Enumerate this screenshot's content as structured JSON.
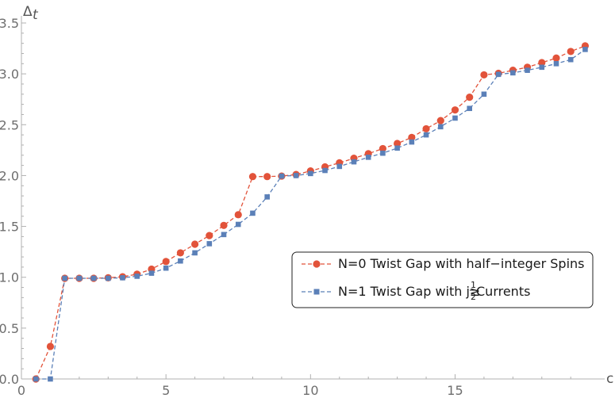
{
  "chart_data": {
    "type": "line",
    "title": "",
    "xlabel": "c",
    "ylabel_main": "Δ",
    "ylabel_sub": "t",
    "xlim": [
      0,
      19.9
    ],
    "ylim": [
      0,
      3.5
    ],
    "x_ticks": [
      0,
      5,
      10,
      15
    ],
    "y_ticks": [
      0.0,
      0.5,
      1.0,
      1.5,
      2.0,
      2.5,
      3.0,
      3.5
    ],
    "y_tick_labels": [
      "0.0",
      "0.5",
      "1.0",
      "1.5",
      "2.0",
      "2.5",
      "3.0",
      "3.5"
    ],
    "x_tick_labels": [
      "0",
      "5",
      "10",
      "15"
    ],
    "grid": false,
    "legend_position": "lower-right",
    "series": [
      {
        "name": "N=0 Twist Gap with half−integer Spins",
        "color": "#e2533a",
        "marker": "circle",
        "x": [
          0.5,
          1,
          1.5,
          2,
          2.5,
          3,
          3.5,
          4,
          4.5,
          5,
          5.5,
          6,
          6.5,
          7,
          7.5,
          8,
          8.5,
          9,
          9.5,
          10,
          10.5,
          11,
          11.5,
          12,
          12.5,
          13,
          13.5,
          14,
          14.5,
          15,
          15.5,
          16,
          16.5,
          17,
          17.5,
          18,
          18.5,
          19,
          19.5
        ],
        "y": [
          0,
          0.32,
          0.99,
          0.99,
          0.99,
          0.995,
          1.005,
          1.03,
          1.08,
          1.155,
          1.24,
          1.325,
          1.41,
          1.51,
          1.615,
          1.99,
          1.99,
          1.995,
          2.01,
          2.045,
          2.085,
          2.125,
          2.17,
          2.215,
          2.265,
          2.315,
          2.375,
          2.46,
          2.54,
          2.645,
          2.77,
          2.99,
          3.005,
          3.035,
          3.065,
          3.11,
          3.155,
          3.22,
          3.275
        ]
      },
      {
        "name_prefix": "N=1 Twist Gap with j≥",
        "name_fraction_num": "1",
        "name_fraction_den": "2",
        "name_suffix": " Currents",
        "color": "#5b80b8",
        "marker": "square",
        "x": [
          0.5,
          1,
          1.5,
          2,
          2.5,
          3,
          3.5,
          4,
          4.5,
          5,
          5.5,
          6,
          6.5,
          7,
          7.5,
          8,
          8.5,
          9,
          9.5,
          10,
          10.5,
          11,
          11.5,
          12,
          12.5,
          13,
          13.5,
          14,
          14.5,
          15,
          15.5,
          16,
          16.5,
          17,
          17.5,
          18,
          18.5,
          19,
          19.5
        ],
        "y": [
          0,
          0,
          0.99,
          0.99,
          0.99,
          0.99,
          0.995,
          1.01,
          1.04,
          1.09,
          1.16,
          1.24,
          1.33,
          1.42,
          1.52,
          1.63,
          1.79,
          1.995,
          2.0,
          2.02,
          2.05,
          2.09,
          2.135,
          2.18,
          2.22,
          2.27,
          2.33,
          2.4,
          2.48,
          2.565,
          2.66,
          2.8,
          2.995,
          3.01,
          3.035,
          3.065,
          3.1,
          3.14,
          3.24
        ]
      }
    ]
  }
}
